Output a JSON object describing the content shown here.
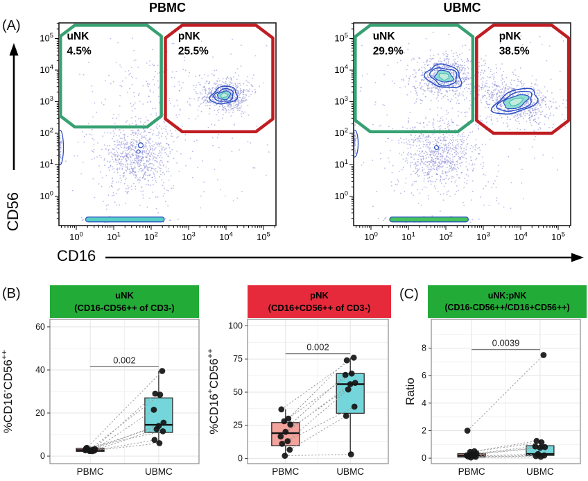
{
  "figure": {
    "panel_a_label": "(A)",
    "panel_b_label": "(B)",
    "panel_c_label": "(C)"
  },
  "flow_axes": {
    "xlabel": "CD16",
    "ylabel": "CD56"
  },
  "colors": {
    "gate_green": "#37a173",
    "gate_red": "#c01d23",
    "header_green": "#23ab38",
    "header_red": "#e72a3b",
    "box_pink": "#f3a29c",
    "box_teal": "#74d6da",
    "scatter_dot": "#7d80d2",
    "contour_blue": "#2c50c2",
    "contour_teal": "#3fbcae",
    "contour_fill1": "#8fdcd4",
    "contour_fill2": "#c3ecdc",
    "band_pbmc": "#58cfc5",
    "band_ubmc": "#46c35c",
    "grid": "#e3e3e3",
    "grid_minor": "#f0f0f0",
    "bracket": "#787878"
  },
  "chart_data": [
    {
      "type": "flow-contour",
      "title": "PBMC",
      "xlabel": "CD16",
      "ylabel": "CD56",
      "decades": [
        0,
        1,
        2,
        3,
        4,
        5
      ],
      "gates": [
        {
          "label": "uNK",
          "percent": "4.5%",
          "color_key": "gate_green",
          "xL": -0.42,
          "xR": 2.27,
          "yT": 5.42,
          "yB": 2.2,
          "cut": 0.38,
          "lx": -0.25,
          "ly": 4.97
        },
        {
          "label": "pNK",
          "percent": "25.5%",
          "color_key": "gate_red",
          "xL": 2.38,
          "xR": 5.25,
          "yT": 5.42,
          "yB": 2.05,
          "cut": 0.45,
          "lx": 2.72,
          "ly": 4.97
        }
      ],
      "populations": [
        {
          "cx": 1.62,
          "cy": 1.3,
          "sx": 0.42,
          "sy": 0.52,
          "n": 620
        },
        {
          "cx": 1.62,
          "cy": 1.35,
          "sx": 0.85,
          "sy": 0.95,
          "n": 170
        },
        {
          "cx": 3.95,
          "cy": 3.2,
          "sx": 0.3,
          "sy": 0.24,
          "n": 480
        },
        {
          "cx": 3.95,
          "cy": 3.2,
          "sx": 0.55,
          "sy": 0.45,
          "n": 150
        },
        {
          "cx": 2.05,
          "cy": 3.65,
          "sx": 0.6,
          "sy": 0.45,
          "n": 85
        },
        {
          "uniform": true,
          "ux0": -0.3,
          "ux1": 5.15,
          "uy0": -0.4,
          "uy1": 5.2,
          "n": 120
        },
        {
          "cx": 1.3,
          "cy": -0.73,
          "sx": 0.5,
          "sy": 0.035,
          "n": 150
        },
        {
          "cx": -0.44,
          "cy": 1.55,
          "sx": 0.02,
          "sy": 0.25,
          "n": 60
        }
      ],
      "contours": [
        {
          "cx": 3.95,
          "cy": 3.2,
          "rx": 0.36,
          "ry": 0.27,
          "angle": -12,
          "rings": [
            1,
            0.72,
            0.48,
            0.26
          ]
        }
      ],
      "micro_contours": [
        [
          1.72,
          1.62,
          3.5
        ],
        [
          1.66,
          1.42,
          2.5
        ]
      ],
      "band": {
        "x0": 0.25,
        "x1": 2.35,
        "y": -0.73,
        "fill_key": "band_pbmc"
      },
      "edge_blob": {
        "y0": 1.0,
        "y1": 2.1
      },
      "seed": 11
    },
    {
      "type": "flow-contour",
      "title": "UBMC",
      "xlabel": "CD16",
      "ylabel": "CD56",
      "decades": [
        0,
        1,
        2,
        3,
        4,
        5
      ],
      "gates": [
        {
          "label": "uNK",
          "percent": "29.9%",
          "color_key": "gate_green",
          "xL": -0.42,
          "xR": 2.72,
          "yT": 5.42,
          "yB": 2.05,
          "cut": 0.4,
          "lx": 0.05,
          "ly": 4.97
        },
        {
          "label": "pNK",
          "percent": "38.5%",
          "color_key": "gate_red",
          "xL": 2.82,
          "xR": 5.28,
          "yT": 5.42,
          "yB": 2.0,
          "cut": 0.45,
          "lx": 3.42,
          "ly": 4.97
        }
      ],
      "populations": [
        {
          "cx": 1.78,
          "cy": 1.3,
          "sx": 0.45,
          "sy": 0.5,
          "n": 600
        },
        {
          "cx": 1.78,
          "cy": 1.4,
          "sx": 0.85,
          "sy": 0.95,
          "n": 180
        },
        {
          "cx": 1.95,
          "cy": 3.8,
          "sx": 0.38,
          "sy": 0.3,
          "n": 520,
          "rot": 10
        },
        {
          "cx": 1.95,
          "cy": 3.8,
          "sx": 0.65,
          "sy": 0.5,
          "n": 160,
          "rot": 10
        },
        {
          "cx": 3.87,
          "cy": 3.0,
          "sx": 0.5,
          "sy": 0.28,
          "n": 520,
          "rot": -20
        },
        {
          "cx": 3.87,
          "cy": 3.0,
          "sx": 0.8,
          "sy": 0.48,
          "n": 160,
          "rot": -20
        },
        {
          "cx": 2.9,
          "cy": 3.5,
          "sx": 0.45,
          "sy": 0.35,
          "n": 70
        },
        {
          "uniform": true,
          "ux0": -0.3,
          "ux1": 5.15,
          "uy0": -0.4,
          "uy1": 5.2,
          "n": 140
        },
        {
          "cx": 1.55,
          "cy": -0.73,
          "sx": 0.55,
          "sy": 0.035,
          "n": 150
        },
        {
          "cx": -0.44,
          "cy": 1.7,
          "sx": 0.02,
          "sy": 0.22,
          "n": 50
        }
      ],
      "contours": [
        {
          "cx": 1.95,
          "cy": 3.8,
          "rx": 0.48,
          "ry": 0.36,
          "angle": 12,
          "rings": [
            1,
            0.75,
            0.5,
            0.28
          ]
        },
        {
          "cx": 3.87,
          "cy": 3.0,
          "rx": 0.62,
          "ry": 0.34,
          "angle": -20,
          "rings": [
            1,
            0.78,
            0.55,
            0.3
          ]
        }
      ],
      "micro_contours": [
        [
          1.75,
          1.55,
          3
        ]
      ],
      "band": {
        "x0": 0.5,
        "x1": 2.6,
        "y": -0.73,
        "fill_key": "band_ubmc"
      },
      "edge_blob": {
        "y0": 1.25,
        "y1": 2.1
      },
      "seed": 23
    },
    {
      "type": "box",
      "header": {
        "line1": "uNK",
        "line2": "(CD16-CD56++ of CD3-)",
        "color_key": "header_green"
      },
      "ylabel_parts": [
        {
          "t": "%CD16"
        },
        {
          "t": "-",
          "sup": true
        },
        {
          "t": "CD56"
        },
        {
          "t": "++",
          "sup": true
        }
      ],
      "yticks": [
        0,
        20,
        40,
        60
      ],
      "ylim": [
        -3.5,
        63.5
      ],
      "categories": [
        "PBMC",
        "UBMC"
      ],
      "series": [
        {
          "name": "PBMC",
          "fill_key": "box_pink",
          "box": {
            "lo": 1.4,
            "q1": 2.2,
            "median": 2.8,
            "q3": 3.6,
            "hi": 4.5
          }
        },
        {
          "name": "UBMC",
          "fill_key": "box_teal",
          "box": {
            "lo": 6,
            "q1": 11,
            "median": 14.5,
            "q3": 27,
            "hi": 39.5
          }
        }
      ],
      "pairs": [
        [
          3.5,
          39.5
        ],
        [
          3.0,
          29
        ],
        [
          2.8,
          28.5
        ],
        [
          3.2,
          21.5
        ],
        [
          2.5,
          15.5
        ],
        [
          2.7,
          14
        ],
        [
          2.3,
          12.5
        ],
        [
          3.8,
          11.5
        ],
        [
          2.6,
          7.5
        ],
        [
          2.4,
          6
        ]
      ],
      "pvalue": "0.002",
      "bracket_y": 41.5
    },
    {
      "type": "box",
      "header": {
        "line1": "pNK",
        "line2": "(CD16+CD56++ of CD3-)",
        "color_key": "header_red"
      },
      "ylabel_parts": [
        {
          "t": "%CD16"
        },
        {
          "t": "+",
          "sup": true
        },
        {
          "t": "CD56"
        },
        {
          "t": "++",
          "sup": true
        }
      ],
      "yticks": [
        0,
        25,
        50,
        75,
        100
      ],
      "ylim": [
        -4,
        105
      ],
      "categories": [
        "PBMC",
        "UBMC"
      ],
      "series": [
        {
          "name": "PBMC",
          "fill_key": "box_pink",
          "box": {
            "lo": 2,
            "q1": 9.5,
            "median": 19,
            "q3": 27,
            "hi": 37
          }
        },
        {
          "name": "UBMC",
          "fill_key": "box_teal",
          "box": {
            "lo": 3,
            "q1": 34,
            "median": 56,
            "q3": 64,
            "hi": 76
          }
        }
      ],
      "pairs": [
        [
          37,
          76
        ],
        [
          30,
          74
        ],
        [
          28,
          64
        ],
        [
          25.5,
          63
        ],
        [
          20,
          57
        ],
        [
          16.5,
          56
        ],
        [
          13,
          52
        ],
        [
          11,
          39
        ],
        [
          6.5,
          32
        ],
        [
          2,
          3
        ]
      ],
      "pvalue": "0.002",
      "bracket_y": 79
    },
    {
      "type": "box",
      "header": {
        "line1": "uNK:pNK",
        "line2": "(CD16-CD56++/CD16+CD56++)",
        "color_key": "header_green"
      },
      "ylabel_parts": [
        {
          "t": "Ratio"
        }
      ],
      "yticks": [
        0,
        2,
        4,
        6,
        8
      ],
      "ylim": [
        -0.4,
        10.1
      ],
      "categories": [
        "PBMC",
        "UBMC"
      ],
      "series": [
        {
          "name": "PBMC",
          "fill_key": "box_pink",
          "box": {
            "lo": 0.02,
            "q1": 0.08,
            "median": 0.18,
            "q3": 0.32,
            "hi": 0.55
          }
        },
        {
          "name": "UBMC",
          "fill_key": "box_teal",
          "box": {
            "lo": 0.05,
            "q1": 0.2,
            "median": 0.3,
            "q3": 0.9,
            "hi": 1.25
          }
        }
      ],
      "pairs": [
        [
          2.0,
          7.5
        ],
        [
          0.5,
          1.25
        ],
        [
          0.45,
          1.15
        ],
        [
          0.35,
          0.85
        ],
        [
          0.3,
          0.8
        ],
        [
          0.2,
          0.75
        ],
        [
          0.15,
          0.3
        ],
        [
          0.12,
          0.2
        ],
        [
          0.1,
          0.15
        ],
        [
          0.05,
          0.1
        ]
      ],
      "pvalue": "0.0039",
      "bracket_y": 7.9
    }
  ]
}
